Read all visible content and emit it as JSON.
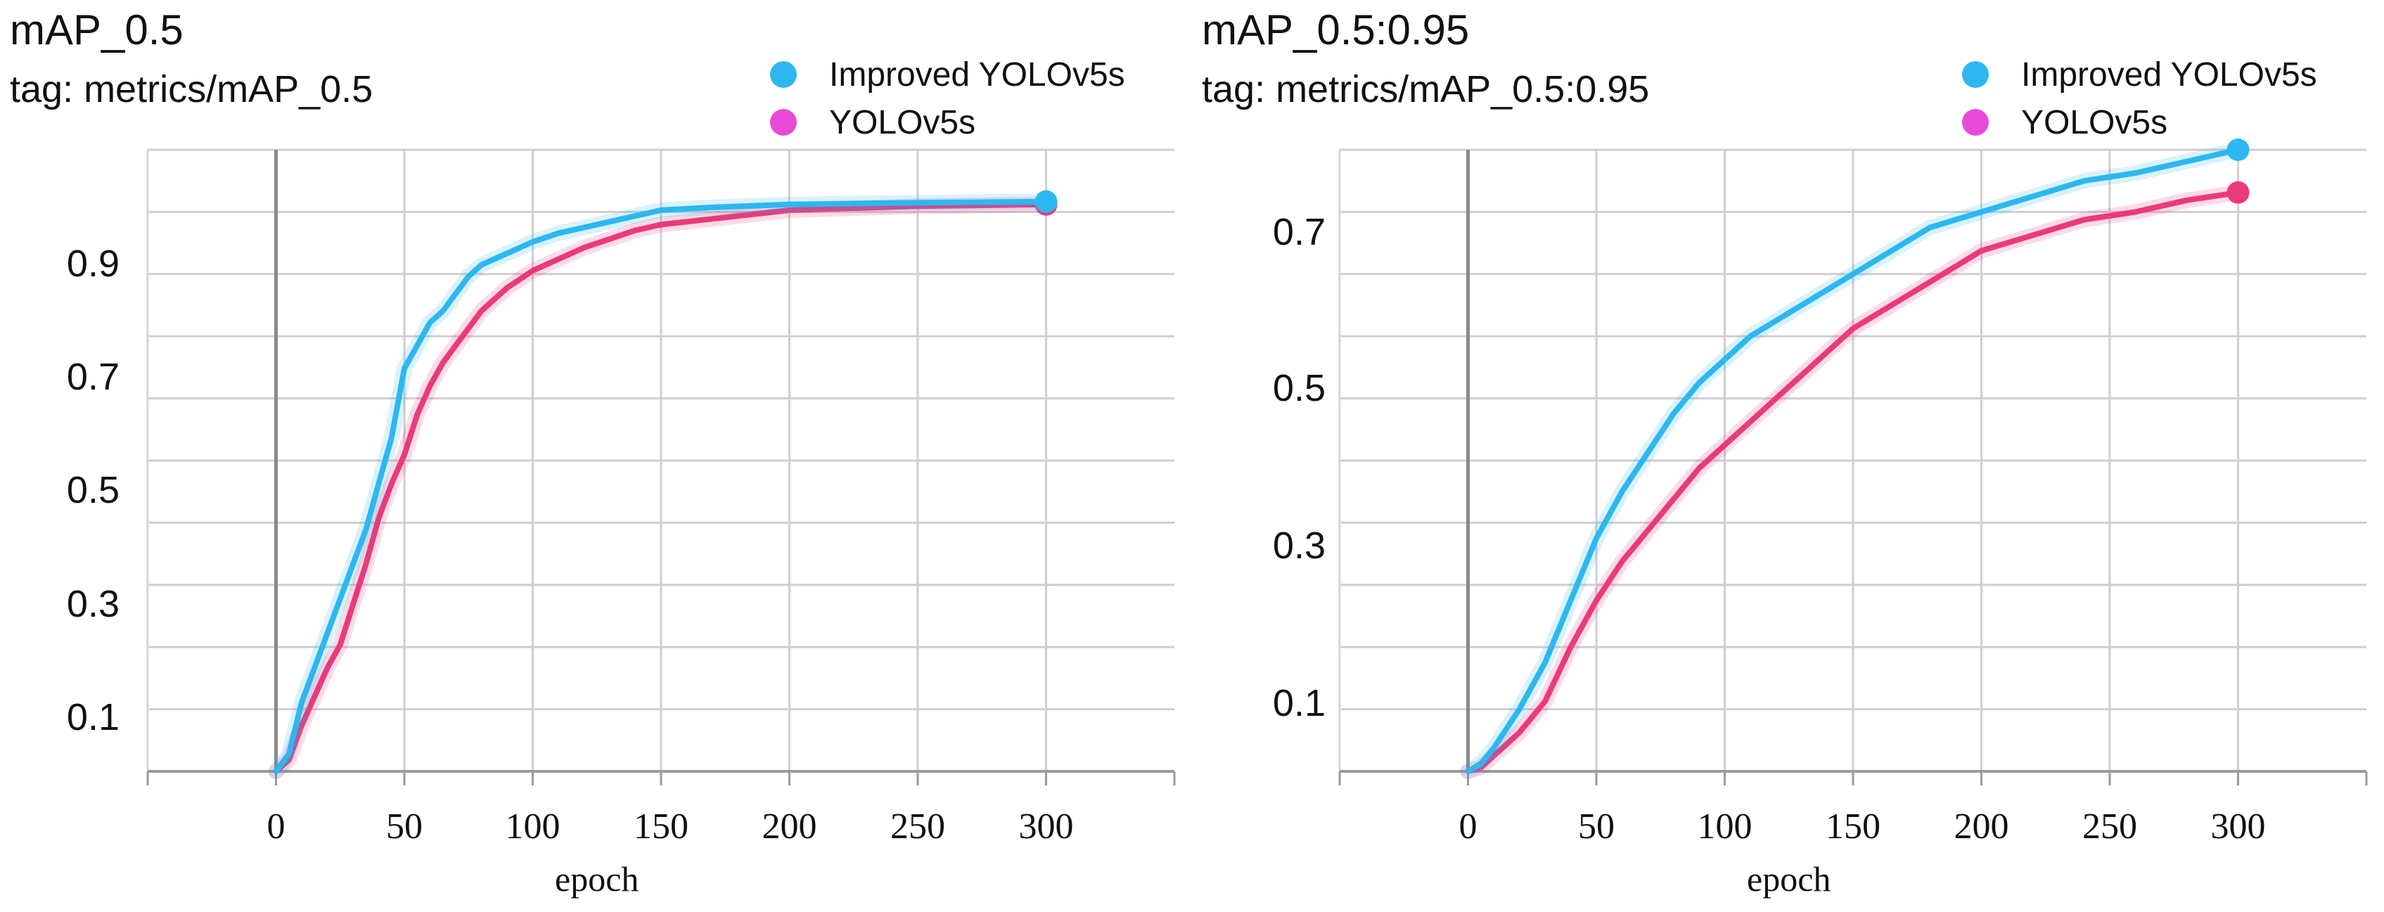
{
  "chart_data": [
    {
      "type": "line",
      "title": "mAP_0.5",
      "subtitle": "tag: metrics/mAP_0.5",
      "xlabel": "epoch",
      "ylabel": "",
      "xlim": [
        -50,
        350
      ],
      "ylim": [
        0,
        1.08
      ],
      "x_ticks": [
        "0",
        "50",
        "100",
        "150",
        "200",
        "250",
        "300"
      ],
      "y_ticks": [
        "0.9",
        "0.7",
        "0.5",
        "0.3",
        "0.1"
      ],
      "legend_position": "top-right",
      "series": [
        {
          "name": "Improved YOLOv5s",
          "color": "#2db7f0",
          "x": [
            0,
            5,
            10,
            15,
            20,
            25,
            30,
            35,
            40,
            45,
            50,
            55,
            60,
            65,
            70,
            75,
            80,
            90,
            100,
            110,
            120,
            130,
            140,
            150,
            170,
            200,
            250,
            300
          ],
          "y": [
            0.0,
            0.03,
            0.12,
            0.18,
            0.24,
            0.3,
            0.36,
            0.42,
            0.5,
            0.58,
            0.7,
            0.74,
            0.78,
            0.8,
            0.83,
            0.86,
            0.88,
            0.9,
            0.92,
            0.935,
            0.945,
            0.955,
            0.965,
            0.975,
            0.98,
            0.985,
            0.988,
            0.99
          ]
        },
        {
          "name": "YOLOv5s",
          "color": "#ea3a7a",
          "x": [
            0,
            5,
            10,
            15,
            20,
            25,
            30,
            35,
            40,
            45,
            50,
            55,
            60,
            65,
            70,
            75,
            80,
            90,
            100,
            110,
            120,
            130,
            140,
            150,
            170,
            200,
            250,
            300
          ],
          "y": [
            0.0,
            0.02,
            0.08,
            0.13,
            0.18,
            0.22,
            0.29,
            0.36,
            0.44,
            0.5,
            0.55,
            0.62,
            0.67,
            0.71,
            0.74,
            0.77,
            0.8,
            0.84,
            0.87,
            0.89,
            0.91,
            0.925,
            0.94,
            0.95,
            0.96,
            0.975,
            0.982,
            0.985
          ]
        }
      ]
    },
    {
      "type": "line",
      "title": "mAP_0.5:0.95",
      "subtitle": "tag: metrics/mAP_0.5:0.95",
      "xlabel": "epoch",
      "ylabel": "",
      "xlim": [
        -50,
        350
      ],
      "ylim": [
        0,
        0.8
      ],
      "x_ticks": [
        "0",
        "50",
        "100",
        "150",
        "200",
        "250",
        "300"
      ],
      "y_ticks": [
        "0.7",
        "0.5",
        "0.3",
        "0.1"
      ],
      "legend_position": "top-right",
      "series": [
        {
          "name": "Improved YOLOv5s",
          "color": "#2db7f0",
          "x": [
            0,
            5,
            10,
            20,
            30,
            40,
            50,
            60,
            70,
            80,
            90,
            100,
            110,
            120,
            130,
            140,
            150,
            160,
            170,
            180,
            190,
            200,
            220,
            240,
            260,
            280,
            300
          ],
          "y": [
            0.0,
            0.01,
            0.03,
            0.08,
            0.14,
            0.22,
            0.3,
            0.36,
            0.41,
            0.46,
            0.5,
            0.53,
            0.56,
            0.58,
            0.6,
            0.62,
            0.64,
            0.66,
            0.68,
            0.7,
            0.71,
            0.72,
            0.74,
            0.76,
            0.77,
            0.785,
            0.8
          ]
        },
        {
          "name": "YOLOv5s",
          "color": "#ea3a7a",
          "x": [
            0,
            5,
            10,
            20,
            30,
            40,
            50,
            60,
            70,
            80,
            90,
            100,
            110,
            120,
            130,
            140,
            150,
            160,
            170,
            180,
            190,
            200,
            220,
            240,
            260,
            280,
            300
          ],
          "y": [
            0.0,
            0.005,
            0.02,
            0.05,
            0.09,
            0.16,
            0.22,
            0.27,
            0.31,
            0.35,
            0.39,
            0.42,
            0.45,
            0.48,
            0.51,
            0.54,
            0.57,
            0.59,
            0.61,
            0.63,
            0.65,
            0.67,
            0.69,
            0.71,
            0.72,
            0.735,
            0.745
          ]
        }
      ]
    }
  ]
}
